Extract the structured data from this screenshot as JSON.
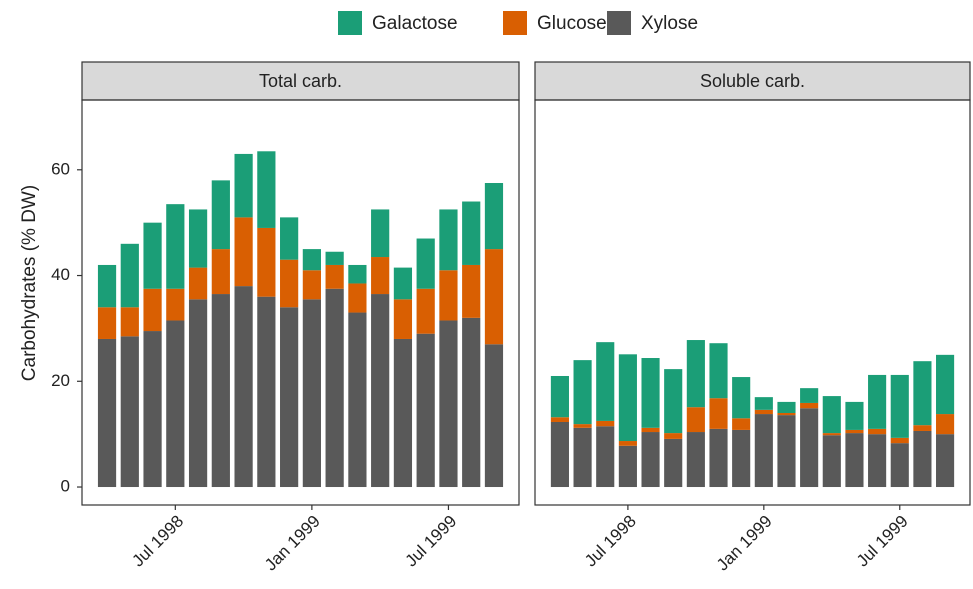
{
  "chart_data": {
    "type": "bar",
    "stacked": true,
    "ylabel": "Carbohydrates (% DW)",
    "ylim": [
      -3.4,
      73.2
    ],
    "yticks": [
      0,
      20,
      40,
      60
    ],
    "categories": [
      null,
      null,
      null,
      "Jul 1998",
      null,
      null,
      null,
      null,
      null,
      "Jan 1999",
      null,
      null,
      null,
      null,
      null,
      "Jul 1999",
      null,
      null
    ],
    "panels": [
      {
        "title": "Total carb.",
        "series": [
          {
            "name": "Galactose",
            "color": "#1b9e77",
            "values": [
              8,
              12,
              12.5,
              16,
              11,
              13,
              12,
              14.5,
              8,
              4,
              2.5,
              3.5,
              9,
              6,
              9.5,
              11.5,
              12,
              12.5
            ]
          },
          {
            "name": "Glucose",
            "color": "#d95f02",
            "values": [
              6,
              5.5,
              8,
              6,
              6,
              8.5,
              13,
              13,
              9,
              5.5,
              4.5,
              5.5,
              7,
              7.5,
              8.5,
              9.5,
              10,
              18
            ]
          },
          {
            "name": "Xylose",
            "color": "#595959",
            "values": [
              28,
              28.5,
              29.5,
              31.5,
              35.5,
              36.5,
              38,
              36,
              34,
              35.5,
              37.5,
              33,
              36.5,
              28,
              29,
              31.5,
              32,
              27
            ]
          }
        ]
      },
      {
        "title": "Soluble carb.",
        "series": [
          {
            "name": "Galactose",
            "color": "#1b9e77",
            "values": [
              7.8,
              12.1,
              14.9,
              16.4,
              13.2,
              12.1,
              12.7,
              10.4,
              7.8,
              2.4,
              2.1,
              2.8,
              7,
              5.3,
              10.2,
              11.9,
              12.1,
              11.2
            ]
          },
          {
            "name": "Glucose",
            "color": "#d95f02",
            "values": [
              0.9,
              0.7,
              1,
              0.9,
              0.8,
              1.1,
              4.7,
              5.8,
              2.2,
              0.8,
              0.4,
              1,
              0.4,
              0.6,
              1,
              1,
              1.1,
              3.8
            ]
          },
          {
            "name": "Xylose",
            "color": "#595959",
            "values": [
              12.3,
              11.2,
              11.5,
              7.8,
              10.4,
              9.1,
              10.4,
              11,
              10.8,
              13.8,
              13.6,
              14.9,
              9.8,
              10.2,
              10,
              8.3,
              10.6,
              10
            ]
          }
        ]
      }
    ]
  }
}
